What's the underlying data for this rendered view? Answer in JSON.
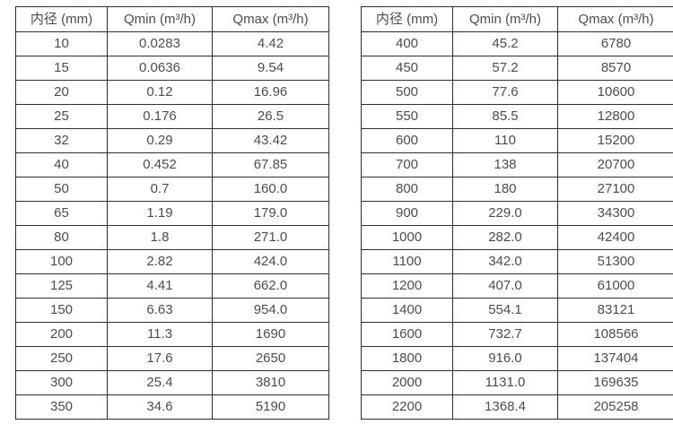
{
  "page": {
    "background": "#ffffff",
    "text_color": "#4d4d4d",
    "border_color": "#2e2e2e"
  },
  "tables": [
    {
      "name": "flow-table-small-diameters",
      "headers": [
        "内径 (mm)",
        "Qmin (m³/h)",
        "Qmax (m³/h)"
      ],
      "rows": [
        [
          "10",
          "0.0283",
          "4.42"
        ],
        [
          "15",
          "0.0636",
          "9.54"
        ],
        [
          "20",
          "0.12",
          "16.96"
        ],
        [
          "25",
          "0.176",
          "26.5"
        ],
        [
          "32",
          "0.29",
          "43.42"
        ],
        [
          "40",
          "0.452",
          "67.85"
        ],
        [
          "50",
          "0.7",
          "160.0"
        ],
        [
          "65",
          "1.19",
          "179.0"
        ],
        [
          "80",
          "1.8",
          "271.0"
        ],
        [
          "100",
          "2.82",
          "424.0"
        ],
        [
          "125",
          "4.41",
          "662.0"
        ],
        [
          "150",
          "6.63",
          "954.0"
        ],
        [
          "200",
          "11.3",
          "1690"
        ],
        [
          "250",
          "17.6",
          "2650"
        ],
        [
          "300",
          "25.4",
          "3810"
        ],
        [
          "350",
          "34.6",
          "5190"
        ]
      ]
    },
    {
      "name": "flow-table-large-diameters",
      "headers": [
        "内径 (mm)",
        "Qmin (m³/h)",
        "Qmax (m³/h)"
      ],
      "rows": [
        [
          "400",
          "45.2",
          "6780"
        ],
        [
          "450",
          "57.2",
          "8570"
        ],
        [
          "500",
          "77.6",
          "10600"
        ],
        [
          "550",
          "85.5",
          "12800"
        ],
        [
          "600",
          "110",
          "15200"
        ],
        [
          "700",
          "138",
          "20700"
        ],
        [
          "800",
          "180",
          "27100"
        ],
        [
          "900",
          "229.0",
          "34300"
        ],
        [
          "1000",
          "282.0",
          "42400"
        ],
        [
          "1100",
          "342.0",
          "51300"
        ],
        [
          "1200",
          "407.0",
          "61000"
        ],
        [
          "1400",
          "554.1",
          "83121"
        ],
        [
          "1600",
          "732.7",
          "108566"
        ],
        [
          "1800",
          "916.0",
          "137404"
        ],
        [
          "2000",
          "1131.0",
          "169635"
        ],
        [
          "2200",
          "1368.4",
          "205258"
        ]
      ]
    }
  ]
}
